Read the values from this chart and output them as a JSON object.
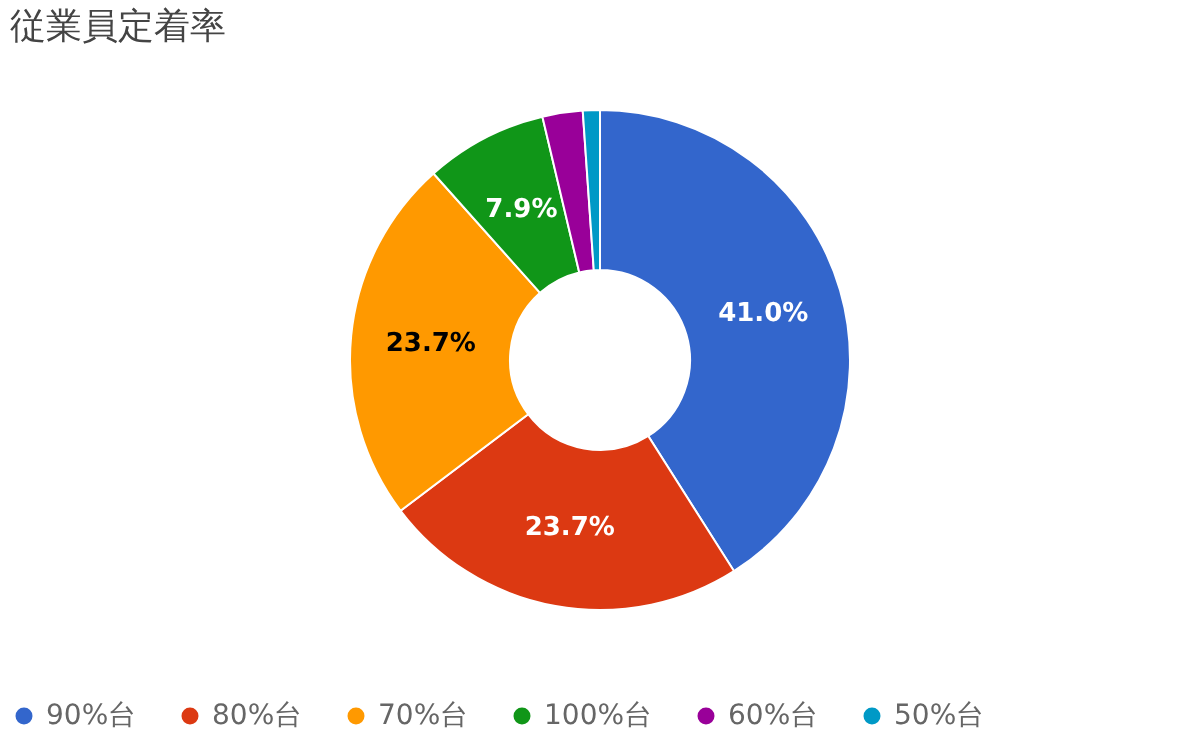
{
  "chart_data": {
    "type": "donut",
    "title": "従業員定着率",
    "categories": [
      "90%台",
      "80%台",
      "70%台",
      "100%台",
      "60%台",
      "50%台"
    ],
    "values": [
      41.0,
      23.7,
      23.7,
      7.9,
      2.6,
      1.1
    ],
    "colors": [
      "#3366cc",
      "#dc3912",
      "#ff9900",
      "#109618",
      "#990099",
      "#0099c6"
    ],
    "value_labels": [
      "41.0%",
      "23.7%",
      "23.7%",
      "7.9%",
      null,
      null
    ],
    "legend": "bottom"
  }
}
